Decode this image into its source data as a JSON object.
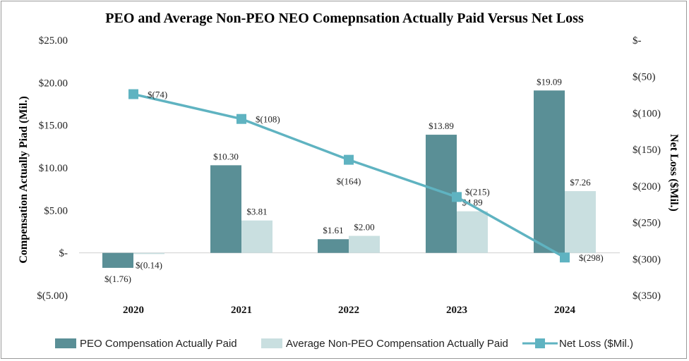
{
  "chart_data": {
    "type": "bar",
    "title": "PEO and Average Non-PEO NEO Comepnsation Actually Paid Versus Net Loss",
    "categories": [
      "2020",
      "2021",
      "2022",
      "2023",
      "2024"
    ],
    "y_left": {
      "label": "Compensation Actually Piad (Mil.)",
      "min": -5,
      "max": 25,
      "ticks": [
        25,
        20,
        15,
        10,
        5,
        0,
        -5
      ],
      "tick_labels": [
        "$25.00",
        "$20.00",
        "$15.00",
        "$10.00",
        "$5.00",
        "$-",
        "$(5.00)"
      ]
    },
    "y_right": {
      "label": "Net Loss ($Mil.)",
      "min": -350,
      "max": 0,
      "ticks": [
        0,
        -50,
        -100,
        -150,
        -200,
        -250,
        -300,
        -350
      ],
      "tick_labels": [
        "$-",
        "$(50)",
        "$(100)",
        "$(150)",
        "$(200)",
        "$(250)",
        "$(300)",
        "$(350)"
      ]
    },
    "series": [
      {
        "name": "PEO Compensation Actually Paid",
        "type": "bar",
        "axis": "left",
        "color": "#5a8f96",
        "values": [
          -1.76,
          10.3,
          1.61,
          13.89,
          19.09
        ],
        "labels": [
          "$(1.76)",
          "$10.30",
          "$1.61",
          "$13.89",
          "$19.09"
        ]
      },
      {
        "name": "Average Non-PEO Compensation Actually Paid",
        "type": "bar",
        "axis": "left",
        "color": "#c9dfe0",
        "values": [
          -0.14,
          3.81,
          2.0,
          4.89,
          7.26
        ],
        "labels": [
          "$(0.14)",
          "$3.81",
          "$2.00",
          "$4.89",
          "$7.26"
        ]
      },
      {
        "name": "Net Loss ($Mil.)",
        "type": "line",
        "axis": "right",
        "color": "#5fb3c1",
        "values": [
          -74,
          -108,
          -164,
          -215,
          -298
        ],
        "labels": [
          "$(74)",
          "$(108)",
          "$(164)",
          "$(215)",
          "$(298)"
        ]
      }
    ],
    "legend_position": "bottom"
  }
}
